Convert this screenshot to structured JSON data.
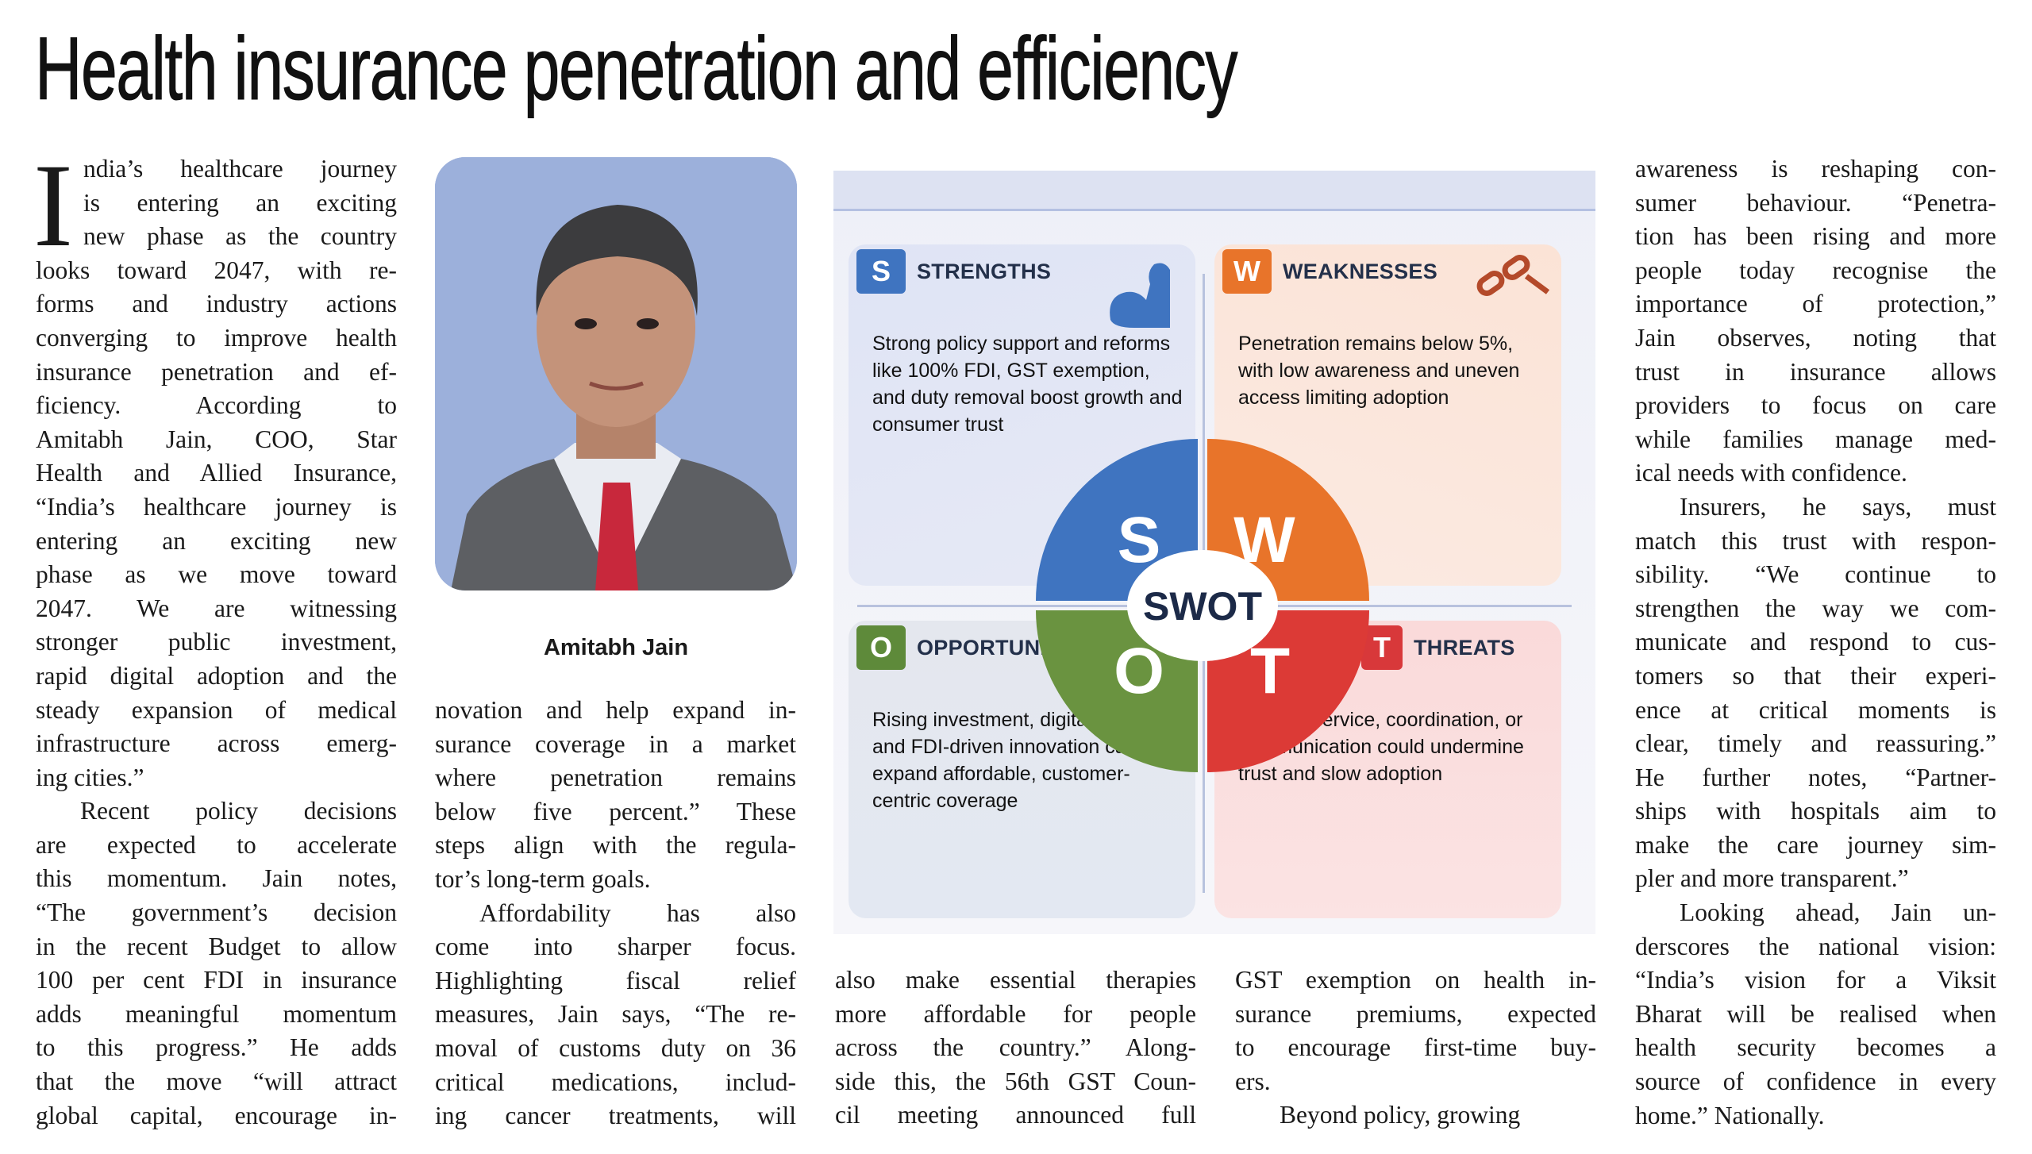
{
  "headline": "Health insurance penetration and efficiency",
  "dropcap": "I",
  "photo_caption": "Amitabh Jain",
  "columns": [
    {
      "paragraphs": [
        {
          "lines": [
            "ndia’s healthcare journey",
            "is entering an exciting",
            "new phase as the country",
            "looks toward 2047, with re-",
            "forms and industry actions",
            "converging to improve health",
            "insurance penetration and ef-",
            "ficiency. According to",
            "Amitabh Jain, COO, Star",
            "Health and Allied Insurance,",
            "“India’s healthcare journey is",
            "entering an exciting new",
            "phase as we move toward",
            "2047. We are witnessing",
            "stronger public investment,",
            "rapid digital adoption and the",
            "steady expansion of medical",
            "infrastructure across emerg-",
            "ing cities.”"
          ]
        },
        {
          "lines": [
            "Recent policy decisions",
            "are expected to accelerate",
            "this momentum. Jain notes,",
            "“The government’s decision",
            "in the recent Budget to allow",
            "100 per cent FDI in insurance",
            "adds meaningful momentum",
            "to this progress.” He adds",
            "that the move “will attract",
            "global capital, encourage in-"
          ]
        }
      ]
    },
    {
      "paragraphs": [
        {
          "lines": [
            "novation and help expand in-",
            "surance coverage in a market",
            "where penetration remains",
            "below five percent.” These",
            "steps align with the regula-",
            "tor’s long-term goals."
          ]
        },
        {
          "lines": [
            "Affordability has also",
            "come into sharper focus.",
            "Highlighting fiscal relief",
            "measures, Jain says, “The re-",
            "moval of customs duty on 36",
            "critical medications, includ-",
            "ing cancer treatments, will"
          ]
        }
      ]
    },
    {
      "paragraphs": [
        {
          "lines": [
            "also make essential therapies",
            "more affordable for people",
            "across the country.” Along-",
            "side this, the 56th GST Coun-",
            "cil meeting announced full"
          ]
        }
      ]
    },
    {
      "paragraphs": [
        {
          "lines": [
            "GST exemption on health in-",
            "surance premiums, expected",
            "to encourage first-time buy-",
            "ers."
          ]
        },
        {
          "lines": [
            "Beyond policy, growing"
          ]
        }
      ]
    },
    {
      "paragraphs": [
        {
          "lines": [
            "awareness is reshaping con-",
            "sumer behaviour. “Penetra-",
            "tion has been rising and more",
            "people today recognise the",
            "importance of protection,”",
            "Jain observes, noting that",
            "trust in insurance allows",
            "providers to focus on care",
            "while families manage med-",
            "ical needs with confidence."
          ]
        },
        {
          "lines": [
            "Insurers, he says, must",
            "match this trust with respon-",
            "sibility. “We continue to",
            "strengthen the way we com-",
            "municate and respond to cus-",
            "tomers so that their experi-",
            "ence at critical moments is",
            "clear, timely and reassuring.”",
            "He further notes, “Partner-",
            "ships with hospitals aim to",
            "make the care journey sim-",
            "pler and more transparent.”"
          ]
        },
        {
          "lines": [
            "Looking ahead, Jain un-",
            "derscores the national vision:",
            "“India’s vision for a Viksit",
            "Bharat will be realised when",
            "health security becomes a",
            "source of confidence in every",
            "home.” Nationally."
          ]
        }
      ]
    }
  ],
  "swot": {
    "center_label": "SWOT",
    "quadrants": [
      {
        "letter": "S",
        "title": "STRENGTHS",
        "text": "Strong policy support and reforms like 100% FDI, GST exemption, and duty removal boost growth and consumer trust",
        "color": "#3f74c0",
        "icon": "flexed-arm-icon"
      },
      {
        "letter": "W",
        "title": "WEAKNESSES",
        "text": "Penetration remains below 5%, with low awareness and uneven access limiting adoption",
        "color": "#e8742a",
        "icon": "broken-chain-icon"
      },
      {
        "letter": "O",
        "title": "OPPORTUNITIES",
        "text": "Rising investment, digital adoption, and FDI-driven innovation can expand affordable, customer-centric coverage",
        "color": "#5e8a3a",
        "icon": ""
      },
      {
        "letter": "T",
        "title": "THREATS",
        "text": "Gaps in service, coordination, or communication could undermine trust and slow adoption",
        "color": "#d8383a",
        "icon": ""
      }
    ]
  }
}
